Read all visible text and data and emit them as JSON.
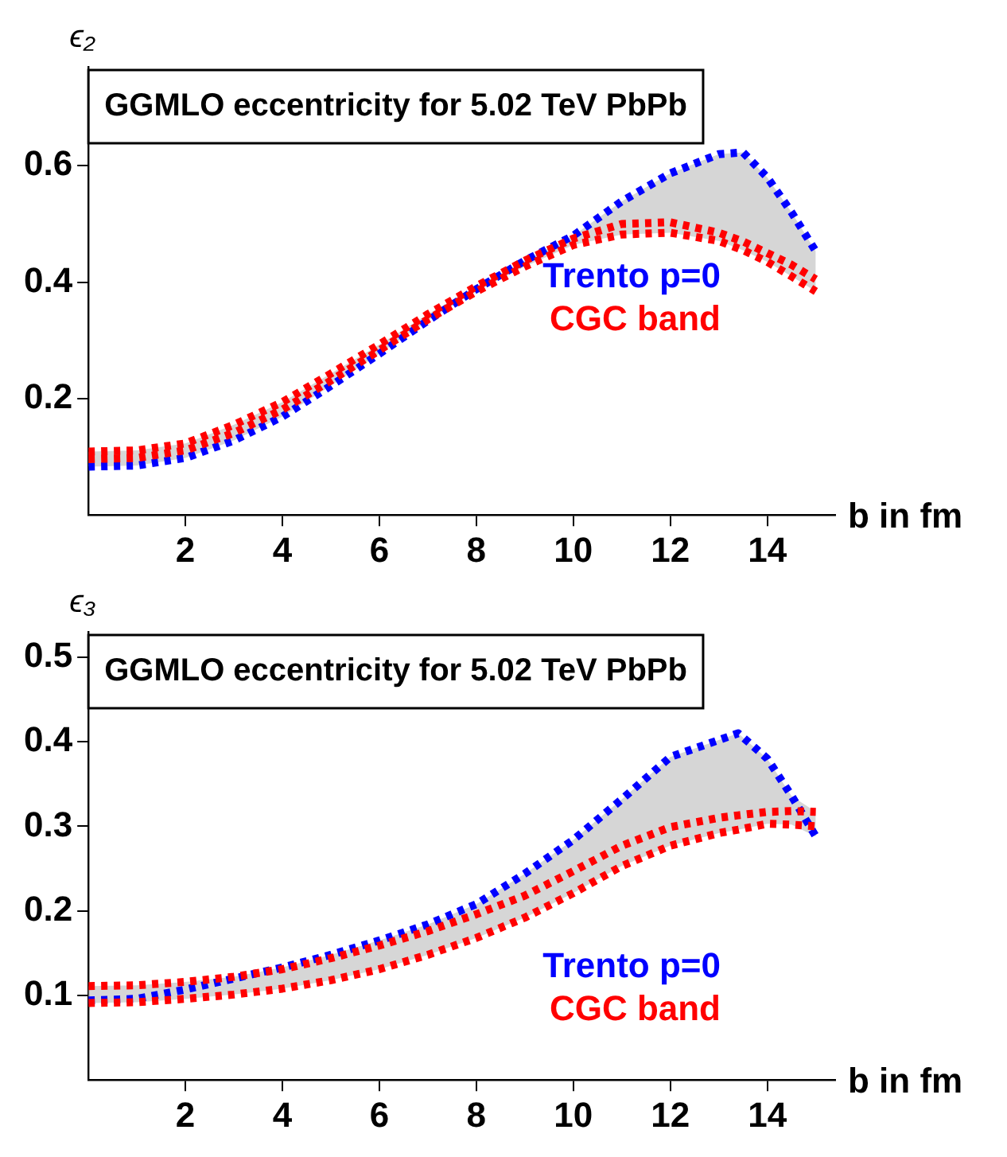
{
  "chart_data": [
    {
      "type": "line",
      "title": "GGMLO eccentricity for 5.02 TeV PbPb",
      "ylabel": "ϵ₂",
      "xlabel": "b in fm",
      "xlim": [
        0,
        15.4
      ],
      "xticks": [
        2,
        4,
        6,
        8,
        10,
        12,
        14
      ],
      "ylim": [
        0,
        0.77
      ],
      "yticks": [
        0.2,
        0.4,
        0.6
      ],
      "grid": false,
      "legend": "right",
      "line_style": "dotted",
      "marker": "none",
      "x": [
        0,
        1,
        2,
        3,
        4,
        5,
        6,
        7,
        8,
        9,
        10,
        11,
        12,
        13,
        13.5,
        14,
        14.5,
        15
      ],
      "series": [
        {
          "name": "Trento p=0",
          "color": "#0000ff",
          "values": [
            0.083,
            0.085,
            0.098,
            0.128,
            0.169,
            0.222,
            0.277,
            0.334,
            0.388,
            0.437,
            0.48,
            0.539,
            0.587,
            0.62,
            0.623,
            0.58,
            0.52,
            0.453
          ],
          "lower": [
            0.083,
            0.085,
            0.098,
            0.128,
            0.169,
            0.222,
            0.277,
            0.334,
            0.384,
            0.427,
            0.464,
            0.482,
            0.485,
            0.471,
            0.455,
            0.435,
            0.41,
            0.384
          ],
          "upper": [
            0.109,
            0.111,
            0.123,
            0.155,
            0.194,
            0.243,
            0.293,
            0.345,
            0.393,
            0.437,
            0.48,
            0.539,
            0.587,
            0.62,
            0.623,
            0.58,
            0.52,
            0.453
          ]
        },
        {
          "name": "CGC band",
          "color": "#ff0000",
          "values": [
            0.109,
            0.111,
            0.123,
            0.155,
            0.194,
            0.243,
            0.293,
            0.345,
            0.393,
            0.437,
            0.475,
            0.5,
            0.503,
            0.485,
            0.47,
            0.45,
            0.43,
            0.405
          ]
        },
        {
          "color": "#ff0000",
          "values": [
            0.096,
            0.098,
            0.111,
            0.141,
            0.181,
            0.231,
            0.283,
            0.336,
            0.384,
            0.427,
            0.464,
            0.482,
            0.485,
            0.471,
            0.455,
            0.435,
            0.41,
            0.384
          ]
        }
      ]
    },
    {
      "type": "line",
      "title": "GGMLO eccentricity for 5.02 TeV PbPb",
      "ylabel": "ϵ₃",
      "xlabel": "b in fm",
      "xlim": [
        0,
        15.4
      ],
      "xticks": [
        2,
        4,
        6,
        8,
        10,
        12,
        14
      ],
      "ylim": [
        0,
        0.53
      ],
      "yticks": [
        0.1,
        0.2,
        0.3,
        0.4,
        0.5
      ],
      "grid": false,
      "legend": "bottom right",
      "line_style": "dotted",
      "marker": "none",
      "x": [
        0,
        1,
        2,
        3,
        4,
        5,
        6,
        7,
        8,
        9,
        10,
        11,
        12,
        13,
        13.4,
        14,
        14.5,
        15
      ],
      "series": [
        {
          "name": "Trento p=0",
          "color": "#0000ff",
          "values": [
            0.094,
            0.096,
            0.107,
            0.12,
            0.133,
            0.148,
            0.165,
            0.184,
            0.208,
            0.244,
            0.284,
            0.332,
            0.382,
            0.402,
            0.41,
            0.38,
            0.336,
            0.288
          ],
          "lower": [
            0.091,
            0.092,
            0.096,
            0.101,
            0.108,
            0.118,
            0.131,
            0.148,
            0.168,
            0.192,
            0.221,
            0.253,
            0.277,
            0.292,
            0.296,
            0.303,
            0.302,
            0.288
          ],
          "upper": [
            0.111,
            0.112,
            0.116,
            0.122,
            0.133,
            0.148,
            0.165,
            0.184,
            0.208,
            0.244,
            0.284,
            0.332,
            0.382,
            0.402,
            0.41,
            0.38,
            0.336,
            0.317
          ]
        },
        {
          "name": "CGC band",
          "color": "#ff0000",
          "values": [
            0.111,
            0.112,
            0.116,
            0.122,
            0.131,
            0.144,
            0.159,
            0.176,
            0.196,
            0.218,
            0.247,
            0.277,
            0.299,
            0.31,
            0.313,
            0.317,
            0.318,
            0.317
          ]
        },
        {
          "color": "#ff0000",
          "values": [
            0.091,
            0.092,
            0.096,
            0.101,
            0.108,
            0.118,
            0.131,
            0.148,
            0.168,
            0.192,
            0.221,
            0.253,
            0.277,
            0.292,
            0.296,
            0.303,
            0.302,
            0.3
          ]
        }
      ]
    }
  ]
}
